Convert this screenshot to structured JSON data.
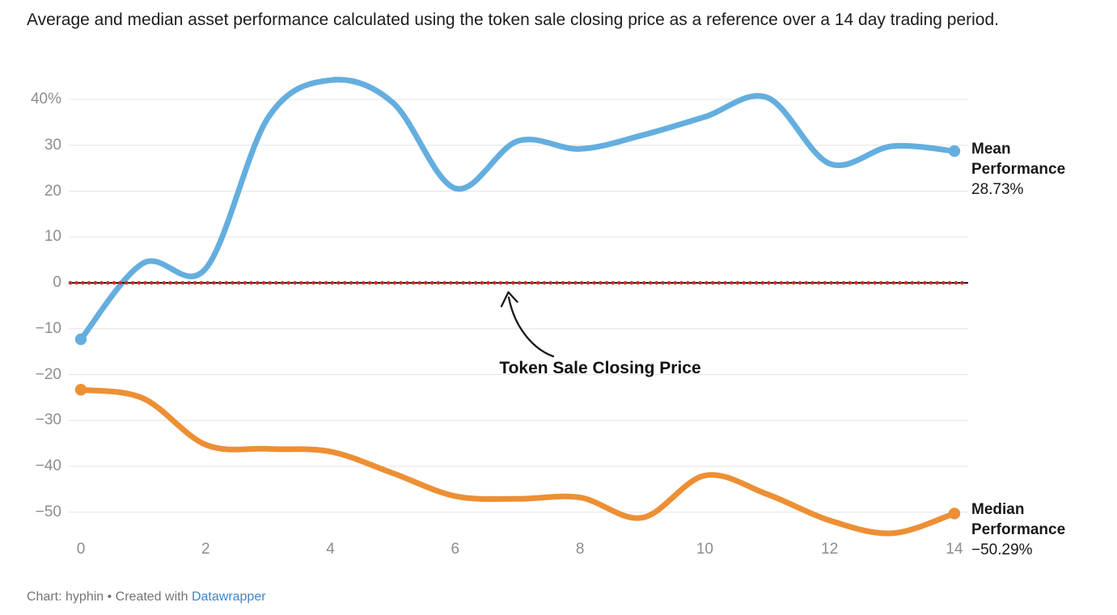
{
  "chart_data": {
    "type": "line",
    "title": "Average and median asset performance calculated using the token sale closing price as a reference over a 14 day trading period.",
    "x": [
      0,
      1,
      2,
      3,
      4,
      5,
      6,
      7,
      8,
      9,
      10,
      11,
      12,
      13,
      14
    ],
    "xlabel": "",
    "ylabel": "",
    "ylim": [
      -55,
      46
    ],
    "grid": "horizontal",
    "series": [
      {
        "name": "Mean Performance",
        "color": "#64aedf",
        "end_value_label": "28.73%",
        "values": [
          -12.3,
          4.3,
          3.1,
          36.0,
          44.2,
          39.3,
          20.6,
          30.9,
          29.2,
          32.2,
          36.2,
          40.4,
          26.0,
          29.8,
          28.73
        ]
      },
      {
        "name": "Median Performance",
        "color": "#ed8f34",
        "end_value_label": "−50.29%",
        "values": [
          -23.3,
          -25.2,
          -35.3,
          -36.2,
          -36.8,
          -41.5,
          -46.5,
          -47.1,
          -46.8,
          -51.2,
          -42.0,
          -46.1,
          -51.8,
          -54.6,
          -50.29
        ]
      }
    ],
    "y_ticks": [
      {
        "value": 40,
        "label": "40%"
      },
      {
        "value": 30,
        "label": "30"
      },
      {
        "value": 20,
        "label": "20"
      },
      {
        "value": 10,
        "label": "10"
      },
      {
        "value": 0,
        "label": "0"
      },
      {
        "value": -10,
        "label": "−10"
      },
      {
        "value": -20,
        "label": "−20"
      },
      {
        "value": -30,
        "label": "−30"
      },
      {
        "value": -40,
        "label": "−40"
      },
      {
        "value": -50,
        "label": "−50"
      }
    ],
    "x_ticks": [
      {
        "value": 0,
        "label": "0"
      },
      {
        "value": 2,
        "label": "2"
      },
      {
        "value": 4,
        "label": "4"
      },
      {
        "value": 6,
        "label": "6"
      },
      {
        "value": 8,
        "label": "8"
      },
      {
        "value": 10,
        "label": "10"
      },
      {
        "value": 12,
        "label": "12"
      },
      {
        "value": 14,
        "label": "14"
      }
    ],
    "annotation": {
      "text": "Token Sale Closing Price"
    },
    "zero_line": {
      "value": 0,
      "line_color": "#1a1a1a",
      "dot_color": "#cc3128"
    },
    "colors": {
      "grid": "#e4e4e4",
      "axis_label": "#8d8d8d",
      "annotation_text": "#111111"
    },
    "legend_position": "right-end-labels"
  },
  "footer": {
    "credit": "Chart: hyphin • Created with",
    "link_label": "Datawrapper",
    "link_color": "#3b87cb"
  }
}
